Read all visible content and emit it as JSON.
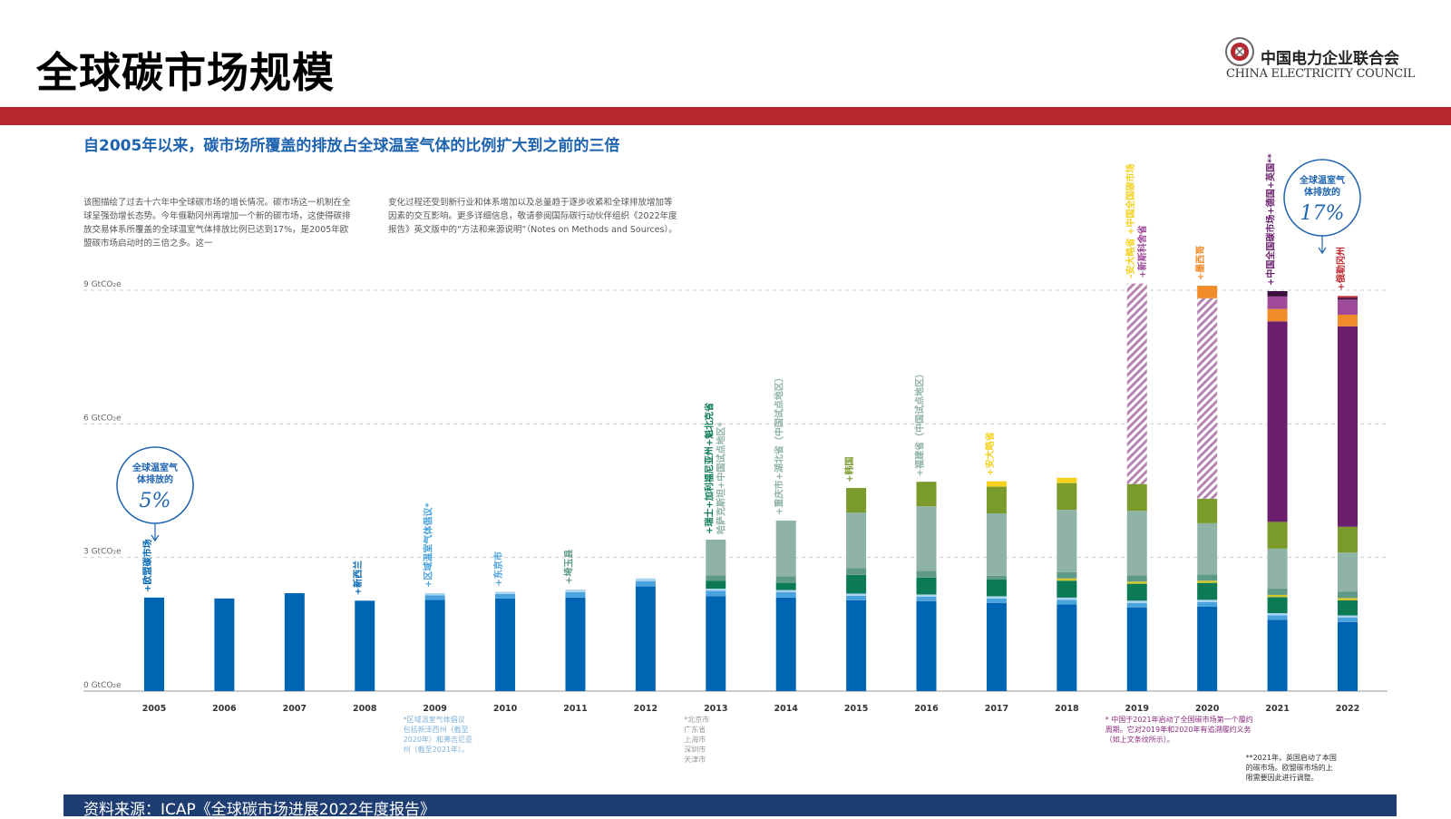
{
  "header": {
    "title": "全球碳市场规模"
  },
  "logo": {
    "name_cn": "中国电力企业联合会",
    "name_en": "CHINA ELECTRICITY COUNCIL",
    "emblem_icon": "cec-emblem-icon"
  },
  "subtitle": "自2005年以来，碳市场所覆盖的排放占全球温室气体的比例扩大到之前的三倍",
  "description": [
    "该图描绘了过去十六年中全球碳市场的增长情况。碳市场这一机制在全球呈强劲增长态势。今年俄勒冈州再增加一个新的碳市场，这使得碳排放交易体系所覆盖的全球温室气体排放比例已达到17%，是2005年欧盟碳市场启动时的三倍之多。这一",
    "变化过程还受到新行业和体系增加以及总量趋于逐步收紧和全球排放增加等因素的交互影响。更多详细信息，敬请参阅国际碳行动伙伴组织《2022年度报告》英文版中的“方法和来源说明”（Notes on Methods and Sources）。"
  ],
  "callouts": [
    {
      "line1": "全球温室气",
      "line2": "体排放的",
      "value": "5%"
    },
    {
      "line1": "全球温室气",
      "line2": "体排放的",
      "value": "17%"
    }
  ],
  "chart_data": {
    "type": "bar",
    "stacked": true,
    "title": "",
    "xlabel": "",
    "ylabel": "",
    "ylim": [
      0,
      9
    ],
    "y_ticks": [
      "0 GtCO₂e",
      "3 GtCO₂e",
      "6 GtCO₂e",
      "9 GtCO₂e"
    ],
    "grid": true,
    "categories": [
      "2005",
      "2006",
      "2007",
      "2008",
      "2009",
      "2010",
      "2011",
      "2012",
      "2013",
      "2014",
      "2015",
      "2016",
      "2017",
      "2018",
      "2019",
      "2020",
      "2021",
      "2022"
    ],
    "series": [
      {
        "color": "#0066b3",
        "values": [
          2.1,
          2.08,
          2.2,
          2.03,
          2.05,
          2.08,
          2.1,
          2.35,
          2.13,
          2.1,
          2.04,
          2.02,
          1.98,
          1.95,
          1.88,
          1.9,
          1.6,
          1.55
        ]
      },
      {
        "color": "#4aa3df",
        "values": [
          0,
          0,
          0,
          0,
          0.1,
          0.1,
          0.12,
          0.12,
          0.12,
          0.12,
          0.1,
          0.1,
          0.1,
          0.1,
          0.1,
          0.1,
          0.1,
          0.1
        ]
      },
      {
        "color": "#a8d4f0",
        "values": [
          0,
          0,
          0,
          0,
          0.05,
          0.05,
          0.06,
          0.06,
          0.05,
          0.05,
          0.05,
          0.05,
          0.05,
          0.05,
          0.05,
          0.05,
          0.05,
          0.05
        ]
      },
      {
        "color": "#0b7a55",
        "values": [
          0,
          0,
          0,
          0,
          0,
          0,
          0,
          0,
          0.18,
          0.16,
          0.42,
          0.38,
          0.38,
          0.38,
          0.38,
          0.38,
          0.36,
          0.34
        ]
      },
      {
        "color": "#d3c62a",
        "values": [
          0,
          0,
          0,
          0,
          0,
          0,
          0,
          0,
          0,
          0,
          0,
          0,
          0,
          0.05,
          0.05,
          0.05,
          0.05,
          0.05
        ]
      },
      {
        "color": "#5f9a87",
        "values": [
          0,
          0,
          0,
          0,
          0,
          0,
          0,
          0,
          0.12,
          0.15,
          0.15,
          0.15,
          0.08,
          0.14,
          0.14,
          0.14,
          0.14,
          0.14
        ]
      },
      {
        "color": "#8fb3a5",
        "values": [
          0,
          0,
          0,
          0,
          0,
          0,
          0,
          0,
          0.8,
          1.25,
          1.25,
          1.45,
          1.4,
          1.4,
          1.45,
          1.15,
          0.9,
          0.88
        ]
      },
      {
        "color": "#7a9a2c",
        "values": [
          0,
          0,
          0,
          0,
          0,
          0,
          0,
          0,
          0,
          0,
          0.55,
          0.55,
          0.6,
          0.6,
          0.6,
          0.55,
          0.6,
          0.58
        ]
      },
      {
        "color": "#f4d21e",
        "values": [
          0,
          0,
          0,
          0,
          0,
          0,
          0,
          0,
          0,
          0,
          0,
          0,
          0.12,
          0.12,
          0,
          0,
          0,
          0
        ]
      },
      {
        "color": "#b584b0",
        "hatched": true,
        "values": [
          0,
          0,
          0,
          0,
          0,
          0,
          0,
          0,
          0,
          0,
          0,
          0,
          0,
          0,
          4.5,
          4.5,
          0,
          0
        ]
      },
      {
        "color": "#6b1e6e",
        "values": [
          0,
          0,
          0,
          0,
          0,
          0,
          0,
          0,
          0,
          0,
          0,
          0,
          0,
          0,
          0,
          0,
          4.5,
          4.5
        ]
      },
      {
        "color": "#f08c2a",
        "values": [
          0,
          0,
          0,
          0,
          0,
          0,
          0,
          0,
          0,
          0,
          0,
          0,
          0,
          0,
          0,
          0.28,
          0.28,
          0.26
        ]
      },
      {
        "color": "#a04a9a",
        "values": [
          0,
          0,
          0,
          0,
          0,
          0,
          0,
          0,
          0,
          0,
          0,
          0,
          0,
          0,
          0,
          0,
          0.28,
          0.34
        ]
      },
      {
        "color": "#3b0f3d",
        "values": [
          0,
          0,
          0,
          0,
          0,
          0,
          0,
          0,
          0,
          0,
          0,
          0,
          0,
          0,
          0,
          0,
          0.12,
          0.04
        ]
      },
      {
        "color": "#c0282e",
        "values": [
          0,
          0,
          0,
          0,
          0,
          0,
          0,
          0,
          0,
          0,
          0,
          0,
          0,
          0,
          0,
          0,
          0,
          0.04
        ]
      }
    ],
    "annotations": [
      {
        "category": "2005",
        "lines": [
          {
            "text": "+欧盟碳市场",
            "color": "#0066b3"
          }
        ]
      },
      {
        "category": "2008",
        "lines": [
          {
            "text": "+新西兰",
            "color": "#0066b3"
          }
        ]
      },
      {
        "category": "2009",
        "lines": [
          {
            "text": "+区域温室气体倡议*",
            "color": "#4aa3df"
          }
        ]
      },
      {
        "category": "2010",
        "lines": [
          {
            "text": "+东京市",
            "color": "#4aa3df"
          }
        ]
      },
      {
        "category": "2011",
        "lines": [
          {
            "text": "+埼玉县",
            "color": "#5f9a87"
          }
        ]
      },
      {
        "category": "2013",
        "lines": [
          {
            "text": "+瑞士+加利福尼亚州+魁北克省",
            "color": "#0b7a55"
          },
          {
            "text": "哈萨克斯坦+中国试点地区*",
            "color": "#8fb3a5"
          }
        ]
      },
      {
        "category": "2014",
        "lines": [
          {
            "text": "+重庆市+湖北省（中国试点地区）",
            "color": "#8fb3a5"
          }
        ]
      },
      {
        "category": "2015",
        "lines": [
          {
            "text": "+韩国",
            "color": "#7a9a2c"
          }
        ]
      },
      {
        "category": "2016",
        "lines": [
          {
            "text": "+福建省（中国试点地区）",
            "color": "#8fb3a5"
          }
        ]
      },
      {
        "category": "2017",
        "lines": [
          {
            "text": "+安大略省",
            "color": "#f4d21e"
          }
        ]
      },
      {
        "category": "2019",
        "lines": [
          {
            "text": "-安大略省 +中国全国碳市场",
            "color": "#f4d21e"
          },
          {
            "text": "+新斯科舍省",
            "color": "#a04a9a"
          }
        ]
      },
      {
        "category": "2020",
        "lines": [
          {
            "text": "+墨西哥",
            "color": "#f08c2a"
          }
        ]
      },
      {
        "category": "2021",
        "lines": [
          {
            "text": "+中国全国碳市场+德国+英国**",
            "color": "#6b1e6e"
          }
        ]
      },
      {
        "category": "2022",
        "lines": [
          {
            "text": "+俄勒冈州",
            "color": "#c0282e"
          }
        ]
      }
    ],
    "footnotes": [
      {
        "category": "2009",
        "text": "*区域温室气体倡议\n包括新泽西州（截至\n2020年）和弗吉尼亚\n州（截至2021年）。"
      },
      {
        "category": "2013",
        "text": "*北京市\n广东省\n上海市\n深圳市\n天津市"
      },
      {
        "category": "2019",
        "text": "* 中国于2021年启动了全国碳市场第一个履约\n周期。它对2019年和2020年有追溯履约义务\n（如上文条纹所示）。"
      },
      {
        "category": "2021",
        "text": "**2021年，英国启动了本国\n的碳市场。欧盟碳市场的上\n限需要因此进行调整。"
      }
    ]
  },
  "footer": {
    "source": "资料来源：ICAP《全球碳市场进展2022年度报告》"
  }
}
